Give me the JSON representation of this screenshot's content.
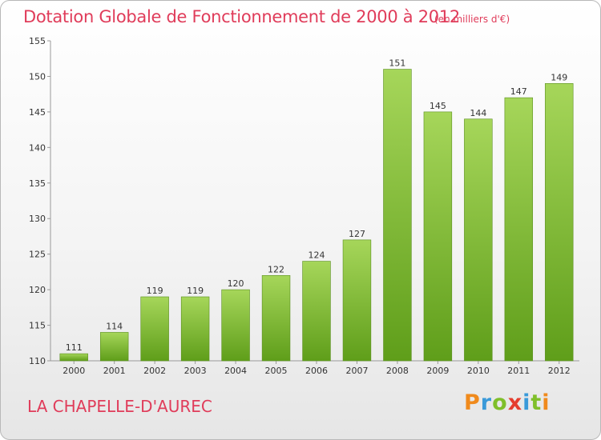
{
  "title": "Dotation Globale de Fonctionnement de 2000 à 2012",
  "subtitle": "(en milliers d'€)",
  "place": "LA CHAPELLE-D'AUREC",
  "brand": {
    "letters": [
      "P",
      "r",
      "o",
      "x",
      "i",
      "t",
      "i"
    ],
    "colors": [
      "#f08a1c",
      "#3a9ad9",
      "#7fbf2a",
      "#e53d2e",
      "#3a9ad9",
      "#7fbf2a",
      "#f08a1c"
    ]
  },
  "chart_data": {
    "type": "bar",
    "title": "Dotation Globale de Fonctionnement de 2000 à 2012",
    "subtitle": "(en milliers d'€)",
    "categories": [
      "2000",
      "2001",
      "2002",
      "2003",
      "2004",
      "2005",
      "2006",
      "2007",
      "2008",
      "2009",
      "2010",
      "2011",
      "2012"
    ],
    "values": [
      111,
      114,
      119,
      119,
      120,
      122,
      124,
      127,
      151,
      145,
      144,
      147,
      149
    ],
    "data_labels": [
      "111",
      "114",
      "119",
      "119",
      "120",
      "122",
      "124",
      "127",
      "151",
      "145",
      "144",
      "147",
      "149"
    ],
    "ylim": [
      110,
      155
    ],
    "yticks": [
      110,
      115,
      120,
      125,
      130,
      135,
      140,
      145,
      150,
      155
    ],
    "grid": false,
    "bar_color_top": "#a6d65a",
    "bar_color_bottom": "#5f9e1a"
  }
}
